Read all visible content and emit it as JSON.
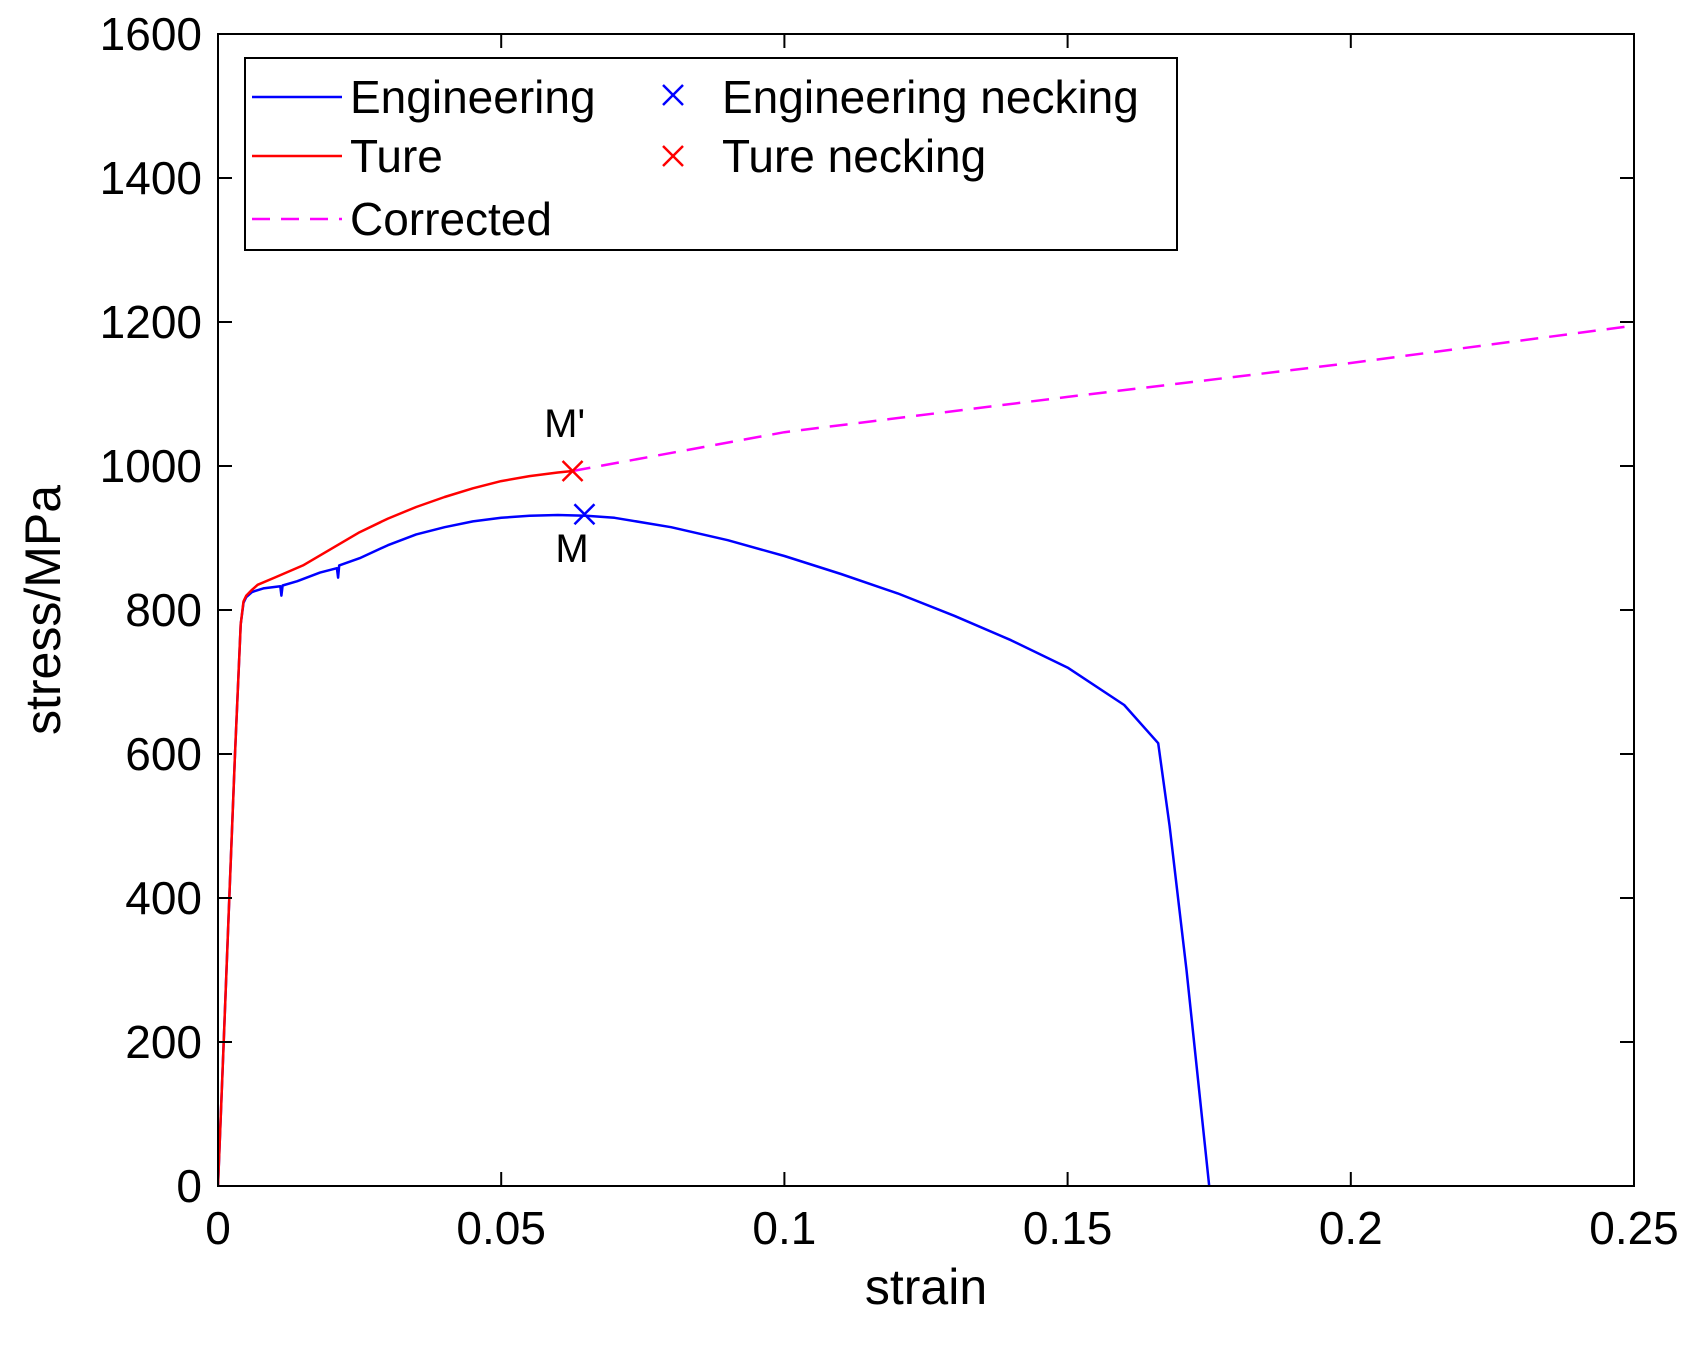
{
  "chart_data": {
    "type": "line",
    "title": "",
    "xlabel": "strain",
    "ylabel": "stress/MPa",
    "xlim": [
      0,
      0.25
    ],
    "ylim": [
      0,
      1600
    ],
    "xticks": [
      0,
      0.05,
      0.1,
      0.15,
      0.2,
      0.25
    ],
    "xtick_labels": [
      "0",
      "0.05",
      "0.1",
      "0.15",
      "0.2",
      "0.25"
    ],
    "yticks": [
      0,
      200,
      400,
      600,
      800,
      1000,
      1200,
      1400,
      1600
    ],
    "ytick_labels": [
      "0",
      "200",
      "400",
      "600",
      "800",
      "1000",
      "1200",
      "1400",
      "1600"
    ],
    "grid": false,
    "legend_position": "top-left",
    "series": [
      {
        "name": "Engineering",
        "style": "solid",
        "color": "#0000ff",
        "x": [
          0,
          0.001,
          0.002,
          0.003,
          0.004,
          0.0045,
          0.005,
          0.006,
          0.008,
          0.011,
          0.0112,
          0.0114,
          0.014,
          0.018,
          0.021,
          0.0212,
          0.0214,
          0.025,
          0.03,
          0.035,
          0.04,
          0.045,
          0.05,
          0.055,
          0.06,
          0.065,
          0.07,
          0.08,
          0.09,
          0.1,
          0.11,
          0.12,
          0.13,
          0.14,
          0.15,
          0.16,
          0.166,
          0.168,
          0.171,
          0.175
        ],
        "y": [
          0,
          200,
          400,
          600,
          780,
          810,
          818,
          825,
          830,
          833,
          820,
          834,
          840,
          852,
          858,
          845,
          862,
          872,
          890,
          905,
          915,
          923,
          928,
          931,
          932,
          931,
          928,
          915,
          897,
          875,
          850,
          823,
          792,
          758,
          720,
          668,
          615,
          500,
          300,
          0
        ]
      },
      {
        "name": "Ture",
        "style": "solid",
        "color": "#ff0000",
        "x": [
          0,
          0.001,
          0.002,
          0.003,
          0.004,
          0.0045,
          0.005,
          0.006,
          0.007,
          0.01,
          0.015,
          0.02,
          0.025,
          0.03,
          0.035,
          0.04,
          0.045,
          0.05,
          0.055,
          0.06,
          0.0626
        ],
        "y": [
          0,
          200,
          400,
          600,
          780,
          812,
          820,
          828,
          835,
          845,
          862,
          885,
          908,
          927,
          943,
          957,
          969,
          979,
          986,
          991,
          993
        ]
      },
      {
        "name": "Corrected",
        "style": "dashed",
        "color": "#ff00ff",
        "x": [
          0.0626,
          0.1,
          0.15,
          0.2,
          0.25
        ],
        "y": [
          993,
          1047,
          1096,
          1143,
          1195
        ]
      }
    ],
    "markers": [
      {
        "name": "Engineering necking",
        "marker": "x",
        "color": "#0000ff",
        "x": 0.0647,
        "y": 933
      },
      {
        "name": "Ture necking",
        "marker": "x",
        "color": "#ff0000",
        "x": 0.0626,
        "y": 993
      }
    ],
    "annotations": [
      {
        "text": "M'",
        "x": 0.0612,
        "y": 1040
      },
      {
        "text": "M",
        "x": 0.0625,
        "y": 867
      }
    ]
  }
}
